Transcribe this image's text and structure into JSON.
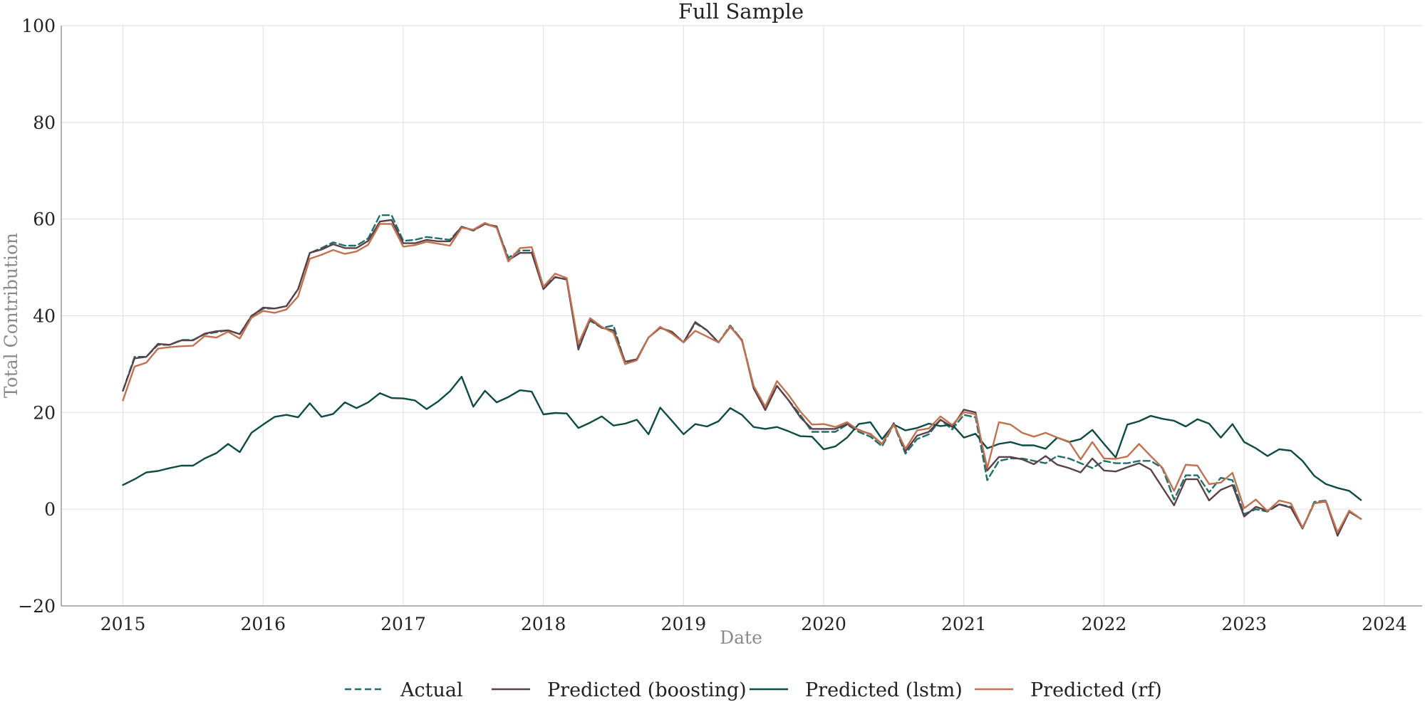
{
  "chart_data": {
    "type": "line",
    "title": "Full Sample",
    "xlabel": "Date",
    "ylabel": "Total Contribution",
    "xlim": [
      2014.56,
      2024.27
    ],
    "ylim": [
      -20,
      100
    ],
    "xticks": [
      2015,
      2016,
      2017,
      2018,
      2019,
      2020,
      2021,
      2022,
      2023,
      2024
    ],
    "yticks": [
      -20,
      0,
      20,
      40,
      60,
      80,
      100
    ],
    "xtick_labels": [
      "2015",
      "2016",
      "2017",
      "2018",
      "2019",
      "2020",
      "2021",
      "2022",
      "2023",
      "2024"
    ],
    "ytick_labels": [
      "−20",
      "0",
      "20",
      "40",
      "60",
      "80",
      "100"
    ],
    "grid": true,
    "legend_position": "bottom-center",
    "x": [
      "2015-01",
      "2015-02",
      "2015-03",
      "2015-04",
      "2015-05",
      "2015-06",
      "2015-07",
      "2015-08",
      "2015-09",
      "2015-10",
      "2015-11",
      "2015-12",
      "2016-01",
      "2016-02",
      "2016-03",
      "2016-04",
      "2016-05",
      "2016-06",
      "2016-07",
      "2016-08",
      "2016-09",
      "2016-10",
      "2016-11",
      "2016-12",
      "2017-01",
      "2017-02",
      "2017-03",
      "2017-04",
      "2017-05",
      "2017-06",
      "2017-07",
      "2017-08",
      "2017-09",
      "2017-10",
      "2017-11",
      "2017-12",
      "2018-01",
      "2018-02",
      "2018-03",
      "2018-04",
      "2018-05",
      "2018-06",
      "2018-07",
      "2018-08",
      "2018-09",
      "2018-10",
      "2018-11",
      "2018-12",
      "2019-01",
      "2019-02",
      "2019-03",
      "2019-04",
      "2019-05",
      "2019-06",
      "2019-07",
      "2019-08",
      "2019-09",
      "2019-10",
      "2019-11",
      "2019-12",
      "2020-01",
      "2020-02",
      "2020-03",
      "2020-04",
      "2020-05",
      "2020-06",
      "2020-07",
      "2020-08",
      "2020-09",
      "2020-10",
      "2020-11",
      "2020-12",
      "2021-01",
      "2021-02",
      "2021-03",
      "2021-04",
      "2021-05",
      "2021-06",
      "2021-07",
      "2021-08",
      "2021-09",
      "2021-10",
      "2021-11",
      "2021-12",
      "2022-01",
      "2022-02",
      "2022-03",
      "2022-04",
      "2022-05",
      "2022-06",
      "2022-07",
      "2022-08",
      "2022-09",
      "2022-10",
      "2022-11",
      "2022-12",
      "2023-01",
      "2023-02",
      "2023-03",
      "2023-04",
      "2023-05",
      "2023-06",
      "2023-07",
      "2023-08",
      "2023-09",
      "2023-10",
      "2023-11"
    ],
    "series": [
      {
        "name": "Actual",
        "color": "#1f6f6b",
        "dash": true,
        "values": [
          24.5,
          31.5,
          31.5,
          34,
          34,
          35,
          35,
          36.2,
          36.6,
          37,
          36.2,
          40,
          41.5,
          41.5,
          42,
          45.5,
          53,
          54,
          55.2,
          54.5,
          54.5,
          56,
          60.8,
          60.8,
          55.5,
          55.7,
          56.3,
          56,
          55.7,
          58.4,
          57.6,
          59,
          58.3,
          52,
          53.5,
          53.5,
          46,
          48,
          47.5,
          33.5,
          39,
          37.5,
          38,
          30.2,
          31,
          35.5,
          37.6,
          36.5,
          34.5,
          38.5,
          37,
          34.5,
          38,
          35,
          25.5,
          20.5,
          25.5,
          22.5,
          19.5,
          16,
          16,
          16,
          17.5,
          16,
          15,
          13,
          17.5,
          11.5,
          14.5,
          15.5,
          18.5,
          16.5,
          19.5,
          19,
          6,
          10,
          10.5,
          10.5,
          10,
          9.5,
          11,
          10.5,
          9.5,
          8.5,
          10,
          9.5,
          9.5,
          10,
          10,
          8.5,
          2,
          7,
          7,
          3.5,
          6.5,
          6,
          -1,
          0,
          -0.5,
          1,
          0.5,
          -4,
          1.5,
          1.8,
          -5,
          -0.5,
          -2
        ]
      },
      {
        "name": "Predicted (boosting)",
        "color": "#5a4149",
        "dash": false,
        "values": [
          24.5,
          31.2,
          31.5,
          34.2,
          34,
          34.9,
          34.9,
          36.3,
          36.8,
          37,
          36.2,
          39.9,
          41.7,
          41.5,
          42,
          45.5,
          53,
          53.7,
          54.8,
          54,
          54,
          55.5,
          59.5,
          59.8,
          55,
          55,
          55.7,
          55.4,
          55.4,
          58.4,
          57.7,
          59,
          58.5,
          51.5,
          53,
          53,
          45.5,
          48,
          47.5,
          33,
          39.3,
          37.5,
          37,
          30.5,
          31,
          35.5,
          37.5,
          36.7,
          34.5,
          38.7,
          37,
          34.5,
          37.7,
          35,
          25,
          20.5,
          25.5,
          22.5,
          19,
          16.6,
          16.6,
          16.6,
          17.6,
          16.4,
          15.5,
          13.5,
          17.8,
          12,
          15.2,
          16,
          18.5,
          17,
          20.6,
          20,
          8,
          10.8,
          10.8,
          10.3,
          9.3,
          11,
          9.2,
          8.5,
          7.6,
          10.5,
          8,
          7.8,
          8.7,
          9.5,
          8.2,
          4.5,
          0.8,
          6.2,
          6.2,
          1.8,
          4,
          5,
          -1.5,
          0.5,
          -0.3,
          1,
          0.3,
          -4,
          1.2,
          1.6,
          -5.5,
          -0.5,
          -2
        ]
      },
      {
        "name": "Predicted (lstm)",
        "color": "#0d4b45",
        "dash": false,
        "values": [
          5,
          6.2,
          7.6,
          7.9,
          8.5,
          9,
          9,
          10.5,
          11.6,
          13.5,
          11.8,
          15.8,
          17.5,
          19.1,
          19.5,
          19,
          21.9,
          19.1,
          19.7,
          22.1,
          20.9,
          22.1,
          24,
          23,
          22.9,
          22.5,
          20.7,
          22.3,
          24.4,
          27.4,
          21.2,
          24.5,
          22.1,
          23.2,
          24.6,
          24.3,
          19.6,
          19.9,
          19.8,
          16.8,
          17.9,
          19.2,
          17.3,
          17.7,
          18.5,
          15.5,
          21,
          18.3,
          15.5,
          17.6,
          17.1,
          18.2,
          20.9,
          19.5,
          17,
          16.6,
          17,
          16.1,
          15.1,
          15,
          12.4,
          13,
          14.8,
          17.6,
          18,
          14.5,
          17.5,
          16.3,
          16.8,
          17.7,
          17.2,
          17.5,
          14.8,
          15.6,
          12.6,
          13.5,
          13.9,
          13.2,
          13.2,
          12.5,
          14.8,
          13.9,
          14.5,
          16.4,
          13.5,
          10.7,
          17.5,
          18.2,
          19.3,
          18.7,
          18.3,
          17.1,
          18.6,
          17.7,
          14.8,
          17.6,
          13.9,
          12.6,
          11,
          12.4,
          12.1,
          10,
          6.9,
          5.2,
          4.4,
          3.8,
          1.9
        ]
      },
      {
        "name": "Predicted (rf)",
        "color": "#c2714f",
        "dash": false,
        "values": [
          22.5,
          29.5,
          30.3,
          33.2,
          33.5,
          33.7,
          33.8,
          35.8,
          35.5,
          36.7,
          35.3,
          39.6,
          41,
          40.6,
          41.3,
          44,
          51.8,
          52.6,
          53.6,
          52.8,
          53.3,
          54.7,
          59,
          59,
          54.3,
          54.6,
          55.3,
          54.9,
          54.5,
          58.2,
          57.8,
          59.2,
          58.2,
          51.2,
          54,
          54.2,
          46,
          48.7,
          47.8,
          34.2,
          39.5,
          37.7,
          36.5,
          30,
          30.8,
          35.5,
          37.7,
          36.3,
          34.5,
          36.9,
          35.7,
          34.5,
          37.8,
          34.8,
          25.5,
          21.2,
          26.5,
          23.6,
          20.2,
          17.5,
          17.6,
          17,
          18,
          16.3,
          15.6,
          13.5,
          17.5,
          12.5,
          16.3,
          16.7,
          19.2,
          17.4,
          20.1,
          19.6,
          8.5,
          18,
          17.5,
          15.8,
          15,
          15.8,
          14.8,
          14,
          10.3,
          13.9,
          10.5,
          10.4,
          10.9,
          13.5,
          11,
          8.6,
          3.8,
          9.2,
          9,
          5.2,
          5.5,
          7.5,
          0.2,
          2,
          -0.4,
          1.8,
          1.2,
          -3.8,
          1.2,
          1.7,
          -4.8,
          -0.3,
          -2
        ]
      }
    ]
  }
}
